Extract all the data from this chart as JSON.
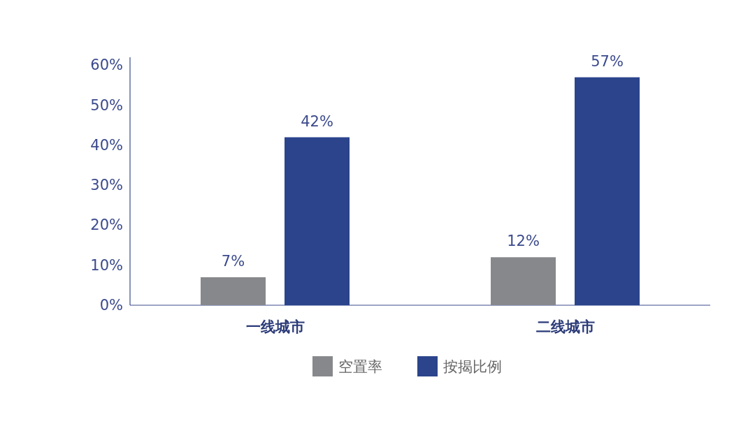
{
  "chart_data": {
    "type": "bar",
    "categories": [
      "一线城市",
      "二线城市"
    ],
    "series": [
      {
        "name": "空置率",
        "color": "#87888c",
        "values": [
          7,
          12
        ],
        "value_labels": [
          "7%",
          "12%"
        ]
      },
      {
        "name": "按揭比例",
        "color": "#2b448c",
        "values": [
          42,
          57
        ],
        "value_labels": [
          "42%",
          "57%"
        ]
      }
    ],
    "ylim": [
      0,
      62
    ],
    "yticks": [
      {
        "value": 0,
        "label": "0%"
      },
      {
        "value": 10,
        "label": "10%"
      },
      {
        "value": 20,
        "label": "20%"
      },
      {
        "value": 30,
        "label": "30%"
      },
      {
        "value": 40,
        "label": "40%"
      },
      {
        "value": 50,
        "label": "50%"
      },
      {
        "value": 60,
        "label": "60%"
      }
    ],
    "grid": false,
    "legend": "bottom"
  }
}
